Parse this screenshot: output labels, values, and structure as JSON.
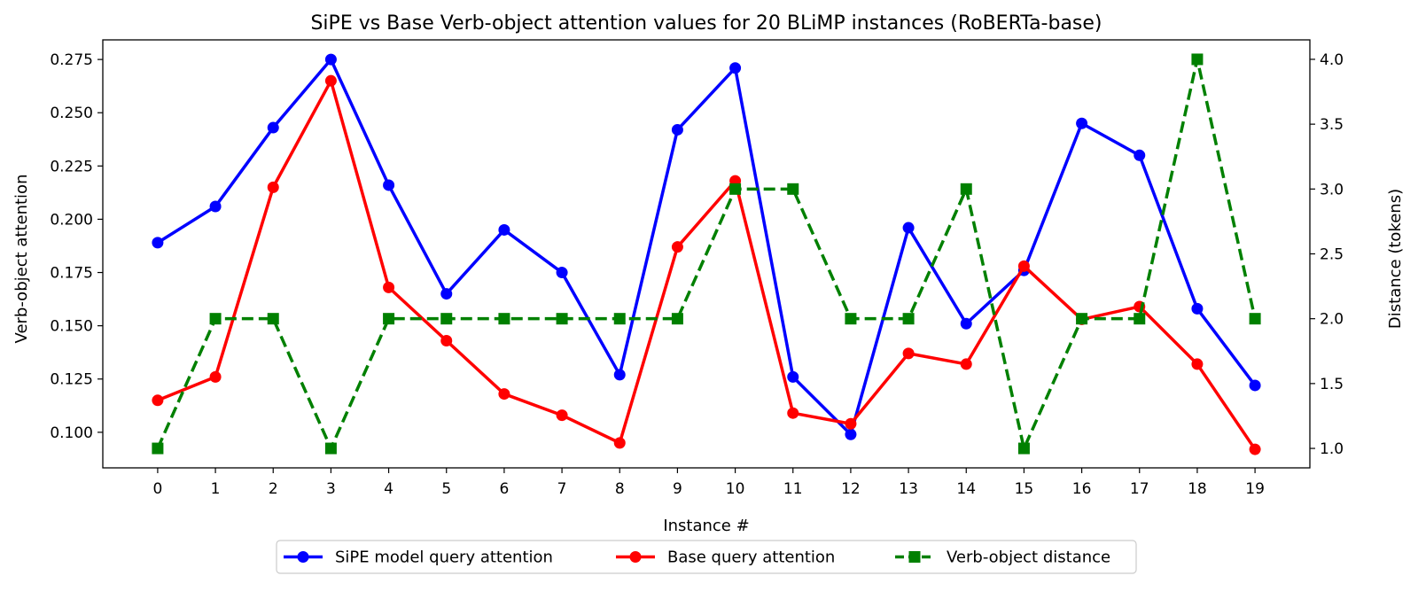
{
  "chart_data": {
    "type": "line",
    "title": "SiPE vs Base Verb-object attention values for 20 BLiMP instances (RoBERTa-base)",
    "xlabel": "Instance #",
    "ylabel_left": "Verb-object attention",
    "ylabel_right": "Distance (tokens)",
    "x": [
      0,
      1,
      2,
      3,
      4,
      5,
      6,
      7,
      8,
      9,
      10,
      11,
      12,
      13,
      14,
      15,
      16,
      17,
      18,
      19
    ],
    "x_tick_labels": [
      "0",
      "1",
      "2",
      "3",
      "4",
      "5",
      "6",
      "7",
      "8",
      "9",
      "10",
      "11",
      "12",
      "13",
      "14",
      "15",
      "16",
      "17",
      "18",
      "19"
    ],
    "xlim": [
      -0.95,
      19.95
    ],
    "ylim_left": [
      0.0833,
      0.2842
    ],
    "ylim_right": [
      0.85,
      4.15
    ],
    "y_ticks_left": [
      0.1,
      0.125,
      0.15,
      0.175,
      0.2,
      0.225,
      0.25,
      0.275
    ],
    "y_tick_labels_left": [
      "0.100",
      "0.125",
      "0.150",
      "0.175",
      "0.200",
      "0.225",
      "0.250",
      "0.275"
    ],
    "y_ticks_right": [
      1.0,
      1.5,
      2.0,
      2.5,
      3.0,
      3.5,
      4.0
    ],
    "y_tick_labels_right": [
      "1.0",
      "1.5",
      "2.0",
      "2.5",
      "3.0",
      "3.5",
      "4.0"
    ],
    "grid": false,
    "legend_position": "bottom-center",
    "series": [
      {
        "name": "SiPE model query attention",
        "axis": "left",
        "color": "#0000ff",
        "marker": "circle",
        "linestyle": "solid",
        "values": [
          0.189,
          0.206,
          0.243,
          0.275,
          0.216,
          0.165,
          0.195,
          0.175,
          0.127,
          0.242,
          0.271,
          0.126,
          0.099,
          0.196,
          0.151,
          0.176,
          0.245,
          0.23,
          0.158,
          0.122
        ]
      },
      {
        "name": "Base query attention",
        "axis": "left",
        "color": "#ff0000",
        "marker": "circle",
        "linestyle": "solid",
        "values": [
          0.115,
          0.126,
          0.215,
          0.265,
          0.168,
          0.143,
          0.118,
          0.108,
          0.095,
          0.187,
          0.218,
          0.109,
          0.104,
          0.137,
          0.132,
          0.178,
          0.153,
          0.159,
          0.132,
          0.092
        ]
      },
      {
        "name": "Verb-object distance",
        "axis": "right",
        "color": "#008000",
        "marker": "square",
        "linestyle": "dashed",
        "values": [
          1,
          2,
          2,
          1,
          2,
          2,
          2,
          2,
          2,
          2,
          3,
          3,
          2,
          2,
          3,
          1,
          2,
          2,
          4,
          2
        ]
      }
    ]
  }
}
